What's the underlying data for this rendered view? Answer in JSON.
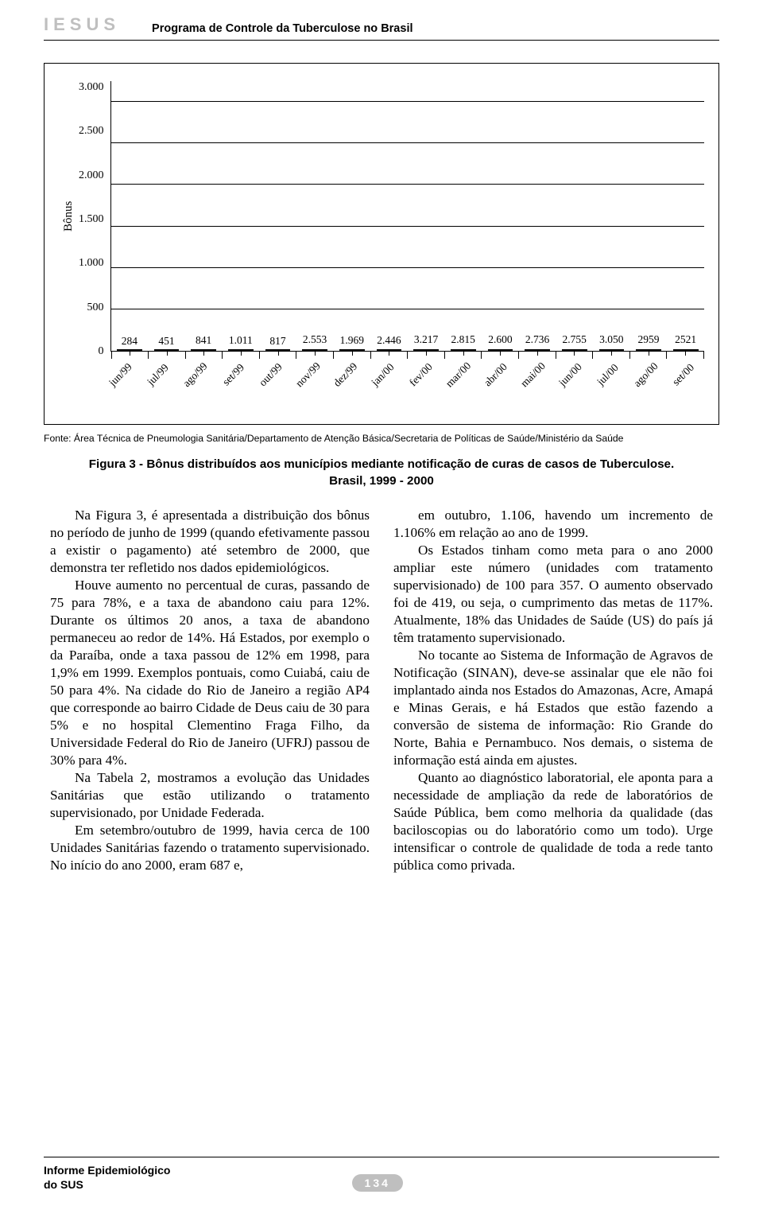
{
  "header": {
    "brand": "IESUS",
    "program": "Programa de Controle da Tuberculose no Brasil"
  },
  "chart": {
    "type": "bar",
    "ylabel": "Bônus",
    "ylim_max": 3250,
    "yticks": [
      "3.000",
      "2.500",
      "2.000",
      "1.500",
      "1.000",
      "500",
      "0"
    ],
    "ytick_values": [
      3000,
      2500,
      2000,
      1500,
      1000,
      500,
      0
    ],
    "bar_fill": "#bfbfbf",
    "bar_stroke": "#000000",
    "grid_color": "#000000",
    "background": "#ffffff",
    "value_fontsize": 13.5,
    "categories": [
      "jun/99",
      "jul/99",
      "ago/99",
      "set/99",
      "out/99",
      "nov/99",
      "dez/99",
      "jan/00",
      "fev/00",
      "mar/00",
      "abr/00",
      "mai/00",
      "jun/00",
      "jul/00",
      "ago/00",
      "set/00"
    ],
    "value_labels": [
      "284",
      "451",
      "841",
      "1.011",
      "817",
      "2.553",
      "1.969",
      "2.446",
      "3.217",
      "2.815",
      "2.600",
      "2.736",
      "2.755",
      "3.050",
      "2959",
      "2521"
    ],
    "values": [
      284,
      451,
      841,
      1011,
      817,
      2553,
      1969,
      2446,
      3217,
      2815,
      2600,
      2736,
      2755,
      3050,
      2959,
      2521
    ]
  },
  "source": "Fonte: Área Técnica de Pneumologia Sanitária/Departamento de Atenção Básica/Secretaria de Políticas de Saúde/Ministério da Saúde",
  "caption_line1": "Figura 3 - Bônus distribuídos aos municípios mediante notificação de curas de casos de Tuberculose.",
  "caption_line2": "Brasil, 1999 - 2000",
  "body": {
    "col1": {
      "p1": "Na Figura 3, é apresentada a distribuição dos bônus no período de junho de 1999 (quando efetivamente passou a existir o pagamento) até setembro de 2000, que demonstra ter refletido nos dados epidemiológicos.",
      "p2": "Houve aumento no percentual de curas, passando de 75 para 78%, e a taxa de abandono caiu para 12%. Durante os últimos 20 anos, a taxa de abandono permaneceu ao redor de 14%. Há Estados, por exemplo o da Paraíba, onde a taxa passou de 12% em 1998, para 1,9% em 1999. Exemplos pontuais, como Cuiabá, caiu de 50 para 4%. Na cidade do Rio de Janeiro a região AP4 que corresponde ao bairro Cidade de Deus caiu de 30 para 5% e no hospital Clementino Fraga Filho, da Universidade Federal do Rio de Janeiro (UFRJ) passou de 30% para 4%.",
      "p3": "Na Tabela 2, mostramos a evolução das Unidades Sanitárias que estão utilizando o tratamento supervisionado, por Unidade Federada.",
      "p4": "Em setembro/outubro de 1999, havia cerca de 100 Unidades Sanitárias fazendo o tratamento supervisionado. No início do ano 2000, eram 687 e,"
    },
    "col2": {
      "p1": "em outubro, 1.106, havendo um incremento de 1.106% em relação ao ano de 1999.",
      "p2": "Os Estados tinham como meta para o ano 2000 ampliar este número (unidades com tratamento supervisionado) de 100 para 357. O aumento observado foi de 419, ou seja, o cumprimento das metas de 117%. Atualmente, 18% das Unidades de Saúde (US) do país já têm tratamento supervisionado.",
      "p3": "No tocante ao Sistema de Informação de Agravos de Notificação (SINAN), deve-se assinalar que ele não foi implantado ainda nos Estados do Amazonas, Acre, Amapá e Minas Gerais, e há Estados que estão fazendo a conversão de sistema de informação: Rio Grande do Norte, Bahia e Pernambuco. Nos demais, o sistema de informação está ainda em ajustes.",
      "p4": "Quanto ao diagnóstico laboratorial, ele aponta para a necessidade de ampliação da rede de laboratórios de Saúde Pública, bem como melhoria da qualidade (das baciloscopias ou do laboratório como um todo). Urge intensificar o controle de qualidade de toda a rede tanto pública como privada."
    }
  },
  "footer": {
    "publication_l1": "Informe Epidemiológico",
    "publication_l2": "do SUS",
    "page": "134"
  }
}
